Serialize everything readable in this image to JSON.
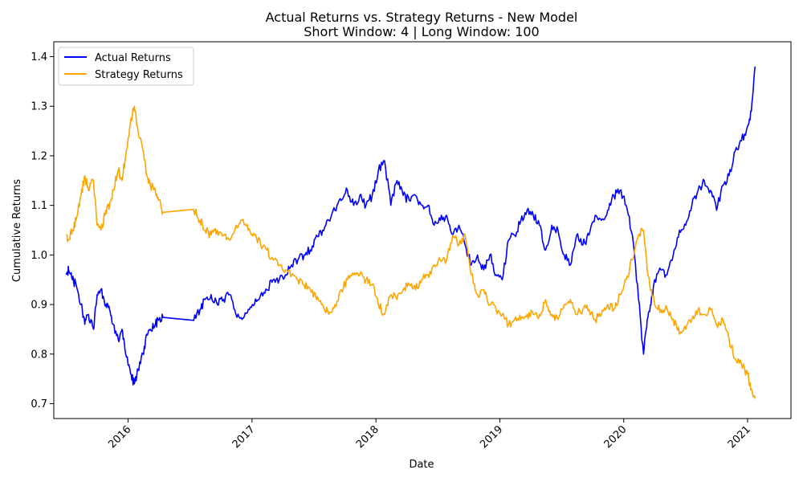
{
  "chart_data": {
    "type": "line",
    "title": "Actual Returns vs. Strategy Returns - New Model",
    "subtitle": "Short Window: 4 | Long Window: 100",
    "xlabel": "Date",
    "ylabel": "Cumulative Returns",
    "xlim": [
      2015.4,
      2021.35
    ],
    "ylim": [
      0.67,
      1.43
    ],
    "x_ticks": [
      {
        "value": 2016,
        "label": "2016"
      },
      {
        "value": 2017,
        "label": "2017"
      },
      {
        "value": 2018,
        "label": "2018"
      },
      {
        "value": 2019,
        "label": "2019"
      },
      {
        "value": 2020,
        "label": "2020"
      },
      {
        "value": 2021,
        "label": "2021"
      }
    ],
    "y_ticks": [
      {
        "value": 0.7,
        "label": "0.7"
      },
      {
        "value": 0.8,
        "label": "0.8"
      },
      {
        "value": 0.9,
        "label": "0.9"
      },
      {
        "value": 1.0,
        "label": "1.0"
      },
      {
        "value": 1.1,
        "label": "1.1"
      },
      {
        "value": 1.2,
        "label": "1.2"
      },
      {
        "value": 1.3,
        "label": "1.3"
      },
      {
        "value": 1.4,
        "label": "1.4"
      }
    ],
    "grid": false,
    "legend_position": "top-left",
    "series": [
      {
        "name": "Actual Returns",
        "color": "#0000ff",
        "x": [
          2015.5,
          2015.52,
          2015.55,
          2015.58,
          2015.62,
          2015.65,
          2015.68,
          2015.72,
          2015.75,
          2015.78,
          2015.82,
          2015.85,
          2015.88,
          2015.92,
          2015.95,
          2015.98,
          2016.02,
          2016.05,
          2016.08,
          2016.12,
          2016.15,
          2016.18,
          2016.22,
          2016.25,
          2016.28,
          2016.53,
          2016.58,
          2016.62,
          2016.67,
          2016.72,
          2016.77,
          2016.82,
          2016.87,
          2016.92,
          2016.97,
          2017.02,
          2017.07,
          2017.12,
          2017.17,
          2017.22,
          2017.27,
          2017.32,
          2017.37,
          2017.42,
          2017.47,
          2017.52,
          2017.57,
          2017.62,
          2017.67,
          2017.72,
          2017.77,
          2017.82,
          2017.87,
          2017.92,
          2017.97,
          2018.02,
          2018.07,
          2018.12,
          2018.17,
          2018.22,
          2018.27,
          2018.32,
          2018.37,
          2018.42,
          2018.47,
          2018.52,
          2018.57,
          2018.62,
          2018.67,
          2018.72,
          2018.77,
          2018.82,
          2018.87,
          2018.92,
          2018.97,
          2019.02,
          2019.07,
          2019.12,
          2019.17,
          2019.22,
          2019.27,
          2019.32,
          2019.37,
          2019.42,
          2019.47,
          2019.52,
          2019.57,
          2019.62,
          2019.67,
          2019.72,
          2019.77,
          2019.82,
          2019.87,
          2019.92,
          2019.97,
          2020.02,
          2020.07,
          2020.12,
          2020.16,
          2020.19,
          2020.22,
          2020.25,
          2020.3,
          2020.35,
          2020.4,
          2020.45,
          2020.5,
          2020.55,
          2020.6,
          2020.65,
          2020.7,
          2020.75,
          2020.8,
          2020.85,
          2020.9,
          2020.95,
          2021.0,
          2021.03,
          2021.06
        ],
        "y": [
          0.96,
          0.97,
          0.95,
          0.94,
          0.9,
          0.86,
          0.88,
          0.85,
          0.92,
          0.93,
          0.9,
          0.89,
          0.86,
          0.83,
          0.85,
          0.8,
          0.76,
          0.74,
          0.77,
          0.8,
          0.84,
          0.85,
          0.86,
          0.87,
          0.874,
          0.868,
          0.89,
          0.91,
          0.92,
          0.9,
          0.91,
          0.92,
          0.88,
          0.87,
          0.89,
          0.9,
          0.92,
          0.93,
          0.95,
          0.95,
          0.96,
          0.98,
          0.99,
          1.0,
          1.01,
          1.04,
          1.05,
          1.07,
          1.09,
          1.11,
          1.13,
          1.1,
          1.12,
          1.1,
          1.12,
          1.17,
          1.19,
          1.1,
          1.15,
          1.12,
          1.11,
          1.12,
          1.1,
          1.1,
          1.06,
          1.07,
          1.08,
          1.04,
          1.06,
          1.02,
          0.98,
          1.0,
          0.97,
          1.0,
          0.96,
          0.95,
          1.03,
          1.04,
          1.07,
          1.09,
          1.08,
          1.06,
          1.01,
          1.06,
          1.05,
          1.0,
          0.98,
          1.04,
          1.02,
          1.04,
          1.08,
          1.07,
          1.09,
          1.12,
          1.13,
          1.1,
          1.04,
          0.91,
          0.8,
          0.87,
          0.9,
          0.95,
          0.97,
          0.96,
          1.0,
          1.05,
          1.06,
          1.1,
          1.13,
          1.15,
          1.13,
          1.09,
          1.14,
          1.16,
          1.21,
          1.23,
          1.26,
          1.29,
          1.38
        ]
      },
      {
        "name": "Strategy Returns",
        "color": "#ffa500",
        "x": [
          2015.5,
          2015.52,
          2015.55,
          2015.58,
          2015.62,
          2015.65,
          2015.68,
          2015.72,
          2015.75,
          2015.78,
          2015.82,
          2015.85,
          2015.88,
          2015.92,
          2015.95,
          2015.98,
          2016.02,
          2016.05,
          2016.08,
          2016.12,
          2016.15,
          2016.18,
          2016.22,
          2016.25,
          2016.28,
          2016.53,
          2016.58,
          2016.62,
          2016.67,
          2016.72,
          2016.77,
          2016.82,
          2016.87,
          2016.92,
          2016.97,
          2017.02,
          2017.07,
          2017.12,
          2017.17,
          2017.22,
          2017.27,
          2017.32,
          2017.37,
          2017.42,
          2017.47,
          2017.52,
          2017.57,
          2017.62,
          2017.67,
          2017.72,
          2017.77,
          2017.82,
          2017.87,
          2017.92,
          2017.97,
          2018.02,
          2018.07,
          2018.12,
          2018.17,
          2018.22,
          2018.27,
          2018.32,
          2018.37,
          2018.42,
          2018.47,
          2018.52,
          2018.57,
          2018.62,
          2018.67,
          2018.72,
          2018.77,
          2018.82,
          2018.87,
          2018.92,
          2018.97,
          2019.02,
          2019.07,
          2019.12,
          2019.17,
          2019.22,
          2019.27,
          2019.32,
          2019.37,
          2019.42,
          2019.47,
          2019.52,
          2019.57,
          2019.62,
          2019.67,
          2019.72,
          2019.77,
          2019.82,
          2019.87,
          2019.92,
          2019.97,
          2020.02,
          2020.07,
          2020.12,
          2020.16,
          2020.19,
          2020.22,
          2020.25,
          2020.3,
          2020.35,
          2020.4,
          2020.45,
          2020.5,
          2020.55,
          2020.6,
          2020.65,
          2020.7,
          2020.75,
          2020.8,
          2020.85,
          2020.9,
          2020.95,
          2021.0,
          2021.03,
          2021.06
        ],
        "y": [
          1.04,
          1.03,
          1.05,
          1.07,
          1.12,
          1.16,
          1.13,
          1.15,
          1.06,
          1.05,
          1.09,
          1.1,
          1.13,
          1.17,
          1.15,
          1.2,
          1.27,
          1.3,
          1.25,
          1.21,
          1.16,
          1.14,
          1.13,
          1.11,
          1.086,
          1.092,
          1.07,
          1.05,
          1.04,
          1.05,
          1.04,
          1.03,
          1.06,
          1.07,
          1.05,
          1.04,
          1.02,
          1.01,
          0.99,
          0.98,
          0.97,
          0.96,
          0.95,
          0.94,
          0.93,
          0.91,
          0.9,
          0.88,
          0.9,
          0.93,
          0.95,
          0.96,
          0.96,
          0.95,
          0.94,
          0.9,
          0.88,
          0.92,
          0.91,
          0.93,
          0.94,
          0.93,
          0.95,
          0.96,
          0.98,
          0.99,
          0.99,
          1.04,
          1.02,
          1.04,
          0.96,
          0.92,
          0.93,
          0.9,
          0.89,
          0.88,
          0.86,
          0.87,
          0.87,
          0.88,
          0.88,
          0.88,
          0.91,
          0.88,
          0.87,
          0.9,
          0.91,
          0.88,
          0.89,
          0.89,
          0.87,
          0.88,
          0.9,
          0.89,
          0.92,
          0.95,
          0.99,
          1.04,
          1.05,
          0.97,
          0.93,
          0.9,
          0.89,
          0.89,
          0.87,
          0.84,
          0.85,
          0.87,
          0.89,
          0.88,
          0.89,
          0.86,
          0.87,
          0.83,
          0.79,
          0.78,
          0.76,
          0.73,
          0.71
        ]
      }
    ]
  }
}
